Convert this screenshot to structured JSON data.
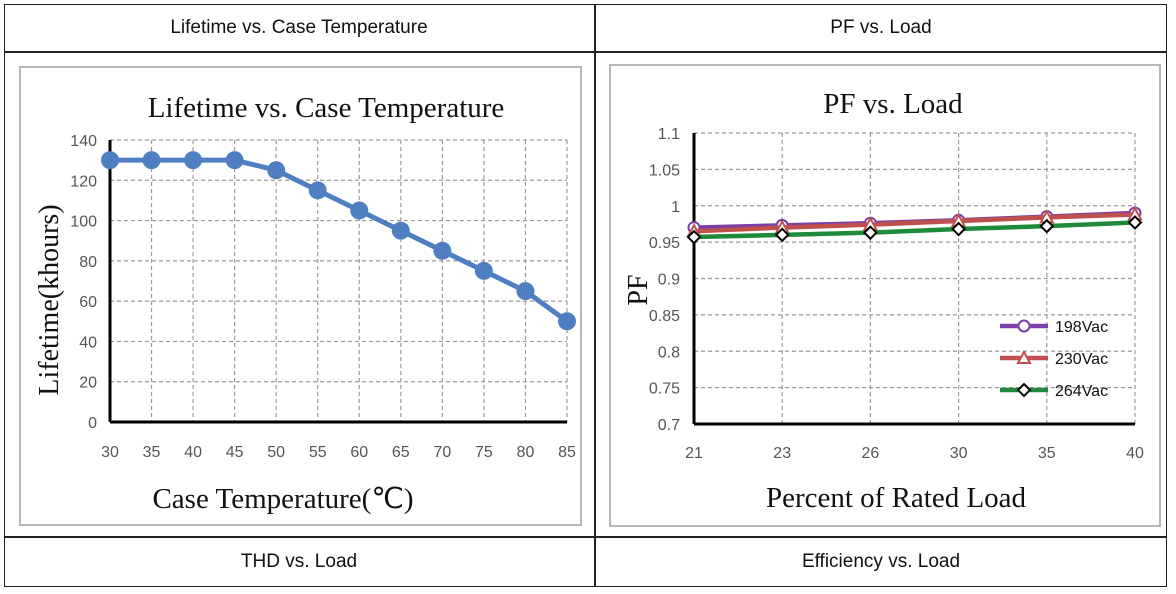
{
  "table": {
    "headers": [
      "Lifetime vs. Case Temperature",
      "PF vs. Load"
    ],
    "footers": [
      "THD vs. Load",
      "Efficiency vs. Load"
    ]
  },
  "colors": {
    "lifetime_line": "#4f7fc0",
    "pf_198": "#7a3fa8",
    "pf_230": "#c0504d",
    "pf_264": "#1f8a3a"
  },
  "chart_data": [
    {
      "type": "line",
      "title": "Lifetime vs. Case Temperature",
      "xlabel": "Case Temperature(℃)",
      "ylabel": "Lifetime(khours)",
      "categories": [
        "30",
        "35",
        "40",
        "45",
        "50",
        "55",
        "60",
        "65",
        "70",
        "75",
        "80",
        "85"
      ],
      "series": [
        {
          "values": [
            130,
            130,
            130,
            130,
            125,
            115,
            105,
            95,
            85,
            75,
            65,
            50
          ]
        }
      ],
      "ylim": [
        0,
        140
      ],
      "yticks": [
        "0",
        "20",
        "40",
        "60",
        "80",
        "100",
        "120",
        "140"
      ],
      "grid": true
    },
    {
      "type": "line",
      "title": "PF vs. Load",
      "xlabel": "Percent of Rated Load",
      "ylabel": "PF",
      "categories": [
        "21",
        "23",
        "26",
        "30",
        "35",
        "40"
      ],
      "series": [
        {
          "name": "198Vac",
          "values": [
            0.97,
            0.973,
            0.976,
            0.98,
            0.985,
            0.99
          ]
        },
        {
          "name": "230Vac",
          "values": [
            0.965,
            0.97,
            0.974,
            0.979,
            0.984,
            0.988
          ]
        },
        {
          "name": "264Vac",
          "values": [
            0.957,
            0.96,
            0.963,
            0.968,
            0.972,
            0.977
          ]
        }
      ],
      "ylim": [
        0.7,
        1.1
      ],
      "yticks": [
        "0.7",
        "0.75",
        "0.8",
        "0.85",
        "0.9",
        "0.95",
        "1",
        "1.05",
        "1.1"
      ],
      "legend": "right",
      "grid": true
    }
  ]
}
